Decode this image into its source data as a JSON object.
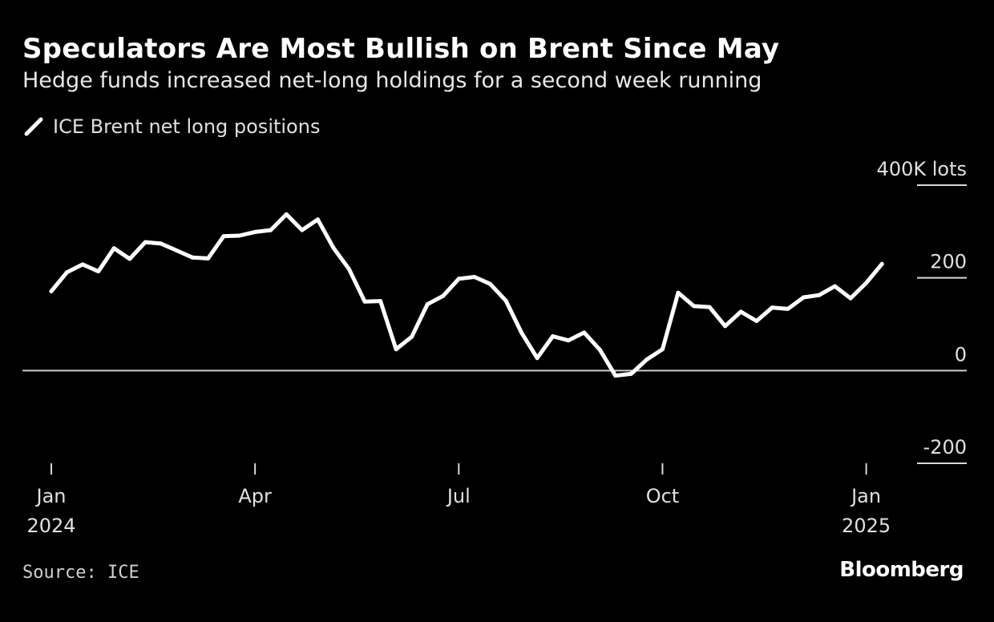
{
  "colors": {
    "background": "#000000",
    "line": "#ffffff",
    "axis_text": "#e0e0e0",
    "zero_line": "#cccccc"
  },
  "source": "Source: ICE",
  "brand": "Bloomberg",
  "chart_data": {
    "type": "line",
    "title": "Speculators Are Most Bullish on Brent Since May",
    "subtitle": "Hedge funds increased net-long holdings for a second week running",
    "xlabel": "",
    "ylabel": "",
    "y_unit_label": "400K lots",
    "ylim": [
      -200,
      400
    ],
    "yticks": [
      400,
      200,
      0,
      -200
    ],
    "ytick_labels": [
      "400K lots",
      "200",
      "0",
      "-200"
    ],
    "legend": {
      "placement": "top-left",
      "entries": [
        "ICE Brent net long positions"
      ]
    },
    "xlim_weeks": [
      -1,
      54
    ],
    "xticks": [
      {
        "week": 0,
        "label": "Jan",
        "year": "2024"
      },
      {
        "week": 13,
        "label": "Apr",
        "year": ""
      },
      {
        "week": 26,
        "label": "Jul",
        "year": ""
      },
      {
        "week": 39,
        "label": "Oct",
        "year": ""
      },
      {
        "week": 52,
        "label": "Jan",
        "year": "2025"
      }
    ],
    "series": [
      {
        "name": "ICE Brent net long positions",
        "x_weeks": [
          0,
          1,
          2,
          3,
          4,
          5,
          6,
          7,
          8,
          9,
          10,
          11,
          12,
          13,
          14,
          15,
          16,
          17,
          18,
          19,
          20,
          21,
          22,
          23,
          24,
          25,
          26,
          27,
          28,
          29,
          30,
          31,
          32,
          33,
          34,
          35,
          36,
          37,
          38,
          39,
          40,
          41,
          42,
          43,
          44,
          45,
          46,
          47,
          48,
          49,
          50,
          51,
          52,
          53
        ],
        "values": [
          171,
          212,
          229,
          214,
          264,
          241,
          277,
          274,
          259,
          244,
          242,
          290,
          291,
          299,
          303,
          337,
          303,
          326,
          265,
          219,
          149,
          150,
          46,
          73,
          143,
          161,
          198,
          202,
          187,
          151,
          82,
          27,
          74,
          65,
          82,
          45,
          -11,
          -7,
          24,
          46,
          168,
          139,
          137,
          96,
          127,
          107,
          136,
          133,
          158,
          163,
          182,
          156,
          189,
          230
        ]
      }
    ]
  }
}
